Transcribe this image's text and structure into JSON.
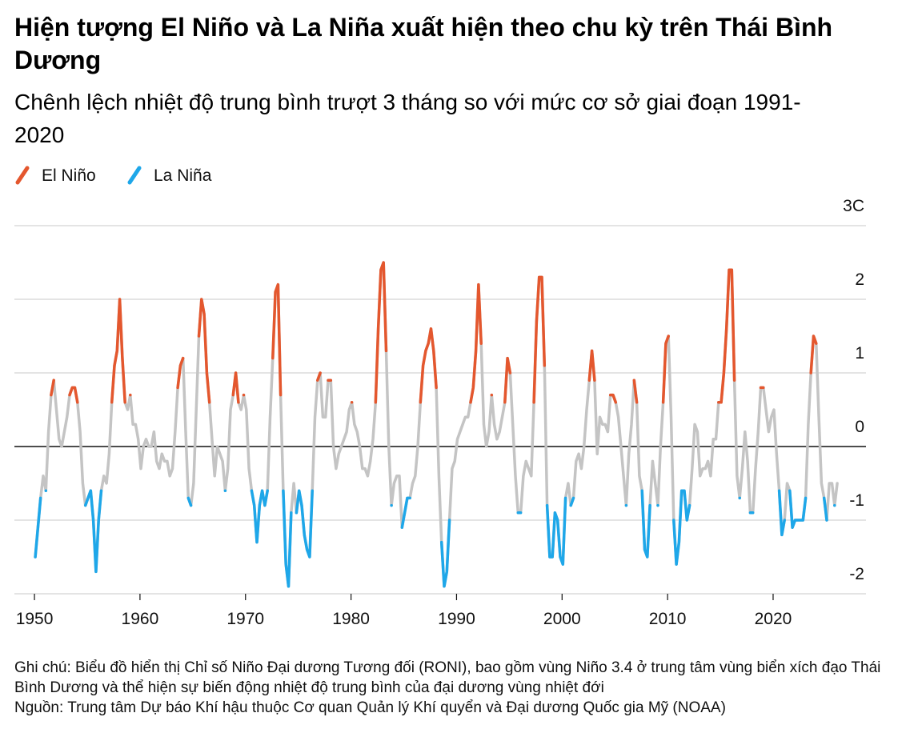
{
  "chart_data": {
    "type": "line",
    "title": "Hiện tượng El Niño và La Niña xuất hiện theo chu kỳ trên Thái Bình Dương",
    "subtitle": "Chênh lệch nhiệt độ trung bình trượt 3 tháng so với mức cơ sở giai đoạn 1991-2020",
    "note": "Ghi chú: Biểu đồ hiển thị Chỉ số Niño Đại dương Tương đối (RONI), bao gồm vùng Niño 3.4 ở trung tâm vùng biển xích đạo Thái Bình Dương và thể hiện sự biến động nhiệt độ trung bình của đại dương vùng nhiệt đới",
    "source": "Nguồn: Trung tâm Dự báo Khí hậu thuộc Cơ quan Quản lý Khí quyển và Đại dương Quốc gia Mỹ (NOAA)",
    "color": "#c4c4c4",
    "series": [
      {
        "name": "El Niño",
        "color": "#e4572e",
        "above": 0.5
      },
      {
        "name": "La Niña",
        "color": "#1ea7e9",
        "below": -0.5
      }
    ],
    "xlim": [
      1948.1,
      2028.8
    ],
    "xticks": [
      1950,
      1960,
      1970,
      1980,
      1990,
      2000,
      2010,
      2020
    ],
    "ylim": [
      -2,
      3
    ],
    "yticks": [
      -2,
      -1,
      0,
      1,
      2,
      {
        "value": 3,
        "label": "3C"
      }
    ],
    "grid": true,
    "x": [
      1950.08,
      1950.33,
      1950.58,
      1950.83,
      1951.08,
      1951.33,
      1951.58,
      1951.83,
      1952.08,
      1952.33,
      1952.58,
      1952.83,
      1953.08,
      1953.33,
      1953.58,
      1953.83,
      1954.08,
      1954.33,
      1954.58,
      1954.83,
      1955.08,
      1955.33,
      1955.58,
      1955.83,
      1956.08,
      1956.33,
      1956.58,
      1956.83,
      1957.08,
      1957.33,
      1957.58,
      1957.83,
      1958.08,
      1958.33,
      1958.58,
      1958.83,
      1959.08,
      1959.33,
      1959.58,
      1959.83,
      1960.08,
      1960.33,
      1960.58,
      1960.83,
      1961.08,
      1961.33,
      1961.58,
      1961.83,
      1962.08,
      1962.33,
      1962.58,
      1962.83,
      1963.08,
      1963.33,
      1963.58,
      1963.83,
      1964.08,
      1964.33,
      1964.58,
      1964.83,
      1965.08,
      1965.33,
      1965.58,
      1965.83,
      1966.08,
      1966.33,
      1966.58,
      1966.83,
      1967.08,
      1967.33,
      1967.58,
      1967.83,
      1968.08,
      1968.33,
      1968.58,
      1968.83,
      1969.08,
      1969.33,
      1969.58,
      1969.83,
      1970.08,
      1970.33,
      1970.58,
      1970.83,
      1971.08,
      1971.33,
      1971.58,
      1971.83,
      1972.08,
      1972.33,
      1972.58,
      1972.83,
      1973.08,
      1973.33,
      1973.58,
      1973.83,
      1974.08,
      1974.33,
      1974.58,
      1974.83,
      1975.08,
      1975.33,
      1975.58,
      1975.83,
      1976.08,
      1976.33,
      1976.58,
      1976.83,
      1977.08,
      1977.33,
      1977.58,
      1977.83,
      1978.08,
      1978.33,
      1978.58,
      1978.83,
      1979.08,
      1979.33,
      1979.58,
      1979.83,
      1980.08,
      1980.33,
      1980.58,
      1980.83,
      1981.08,
      1981.33,
      1981.58,
      1981.83,
      1982.08,
      1982.33,
      1982.58,
      1982.83,
      1983.08,
      1983.33,
      1983.58,
      1983.83,
      1984.08,
      1984.33,
      1984.58,
      1984.83,
      1985.08,
      1985.33,
      1985.58,
      1985.83,
      1986.08,
      1986.33,
      1986.58,
      1986.83,
      1987.08,
      1987.33,
      1987.58,
      1987.83,
      1988.08,
      1988.33,
      1988.58,
      1988.83,
      1989.08,
      1989.33,
      1989.58,
      1989.83,
      1990.08,
      1990.33,
      1990.58,
      1990.83,
      1991.08,
      1991.33,
      1991.58,
      1991.83,
      1992.08,
      1992.33,
      1992.58,
      1992.83,
      1993.08,
      1993.33,
      1993.58,
      1993.83,
      1994.08,
      1994.33,
      1994.58,
      1994.83,
      1995.08,
      1995.33,
      1995.58,
      1995.83,
      1996.08,
      1996.33,
      1996.58,
      1996.83,
      1997.08,
      1997.33,
      1997.58,
      1997.83,
      1998.08,
      1998.33,
      1998.58,
      1998.83,
      1999.08,
      1999.33,
      1999.58,
      1999.83,
      2000.08,
      2000.33,
      2000.58,
      2000.83,
      2001.08,
      2001.33,
      2001.58,
      2001.83,
      2002.08,
      2002.33,
      2002.58,
      2002.83,
      2003.08,
      2003.33,
      2003.58,
      2003.83,
      2004.08,
      2004.33,
      2004.58,
      2004.83,
      2005.08,
      2005.33,
      2005.58,
      2005.83,
      2006.08,
      2006.33,
      2006.58,
      2006.83,
      2007.08,
      2007.33,
      2007.58,
      2007.83,
      2008.08,
      2008.33,
      2008.58,
      2008.83,
      2009.08,
      2009.33,
      2009.58,
      2009.83,
      2010.08,
      2010.33,
      2010.58,
      2010.83,
      2011.08,
      2011.33,
      2011.58,
      2011.83,
      2012.08,
      2012.33,
      2012.58,
      2012.83,
      2013.08,
      2013.33,
      2013.58,
      2013.83,
      2014.08,
      2014.33,
      2014.58,
      2014.83,
      2015.08,
      2015.33,
      2015.58,
      2015.83,
      2016.08,
      2016.33,
      2016.58,
      2016.83,
      2017.08,
      2017.33,
      2017.58,
      2017.83,
      2018.08,
      2018.33,
      2018.58,
      2018.83,
      2019.08,
      2019.33,
      2019.58,
      2019.83,
      2020.08,
      2020.33,
      2020.58,
      2020.83,
      2021.08,
      2021.33,
      2021.58,
      2021.83,
      2022.08,
      2022.33,
      2022.58,
      2022.83,
      2023.08,
      2023.33,
      2023.58,
      2023.83,
      2024.08,
      2024.33,
      2024.58,
      2024.83,
      2025.08,
      2025.33,
      2025.58,
      2025.83,
      2026.08
    ],
    "values": [
      -1.5,
      -1.1,
      -0.7,
      -0.4,
      -0.6,
      0.2,
      0.7,
      0.9,
      0.5,
      0.1,
      0.0,
      0.2,
      0.4,
      0.7,
      0.8,
      0.8,
      0.6,
      0.2,
      -0.5,
      -0.8,
      -0.7,
      -0.6,
      -1.0,
      -1.7,
      -1.0,
      -0.6,
      -0.4,
      -0.5,
      -0.1,
      0.6,
      1.1,
      1.3,
      2.0,
      1.2,
      0.6,
      0.5,
      0.7,
      0.3,
      0.3,
      0.1,
      -0.3,
      0.0,
      0.1,
      0.0,
      0.0,
      0.2,
      -0.2,
      -0.3,
      -0.1,
      -0.2,
      -0.2,
      -0.4,
      -0.3,
      0.2,
      0.8,
      1.1,
      1.2,
      0.2,
      -0.7,
      -0.8,
      -0.5,
      0.5,
      1.5,
      2.0,
      1.8,
      1.0,
      0.6,
      0.1,
      -0.4,
      0.0,
      -0.1,
      -0.2,
      -0.6,
      -0.3,
      0.5,
      0.7,
      1.0,
      0.6,
      0.5,
      0.7,
      0.5,
      -0.3,
      -0.6,
      -0.8,
      -1.3,
      -0.8,
      -0.6,
      -0.8,
      -0.6,
      0.4,
      1.2,
      2.1,
      2.2,
      0.7,
      -0.6,
      -1.6,
      -1.9,
      -0.9,
      -0.5,
      -0.9,
      -0.6,
      -0.8,
      -1.2,
      -1.4,
      -1.5,
      -0.6,
      0.4,
      0.9,
      1.0,
      0.4,
      0.4,
      0.9,
      0.9,
      0.0,
      -0.3,
      -0.1,
      0.0,
      0.1,
      0.2,
      0.5,
      0.6,
      0.3,
      0.2,
      0.0,
      -0.3,
      -0.3,
      -0.4,
      -0.2,
      0.1,
      0.6,
      1.6,
      2.4,
      2.5,
      1.3,
      0.0,
      -0.8,
      -0.5,
      -0.4,
      -0.4,
      -1.1,
      -0.9,
      -0.7,
      -0.7,
      -0.5,
      -0.4,
      0.0,
      0.6,
      1.1,
      1.3,
      1.4,
      1.6,
      1.3,
      0.8,
      -0.4,
      -1.3,
      -1.9,
      -1.7,
      -1.0,
      -0.3,
      -0.2,
      0.1,
      0.2,
      0.3,
      0.4,
      0.4,
      0.6,
      0.8,
      1.3,
      2.2,
      1.4,
      0.3,
      0.0,
      0.2,
      0.7,
      0.3,
      0.1,
      0.2,
      0.4,
      0.6,
      1.2,
      1.0,
      0.3,
      -0.4,
      -0.9,
      -0.9,
      -0.4,
      -0.2,
      -0.3,
      -0.4,
      0.6,
      1.7,
      2.3,
      2.3,
      1.1,
      -0.8,
      -1.5,
      -1.5,
      -0.9,
      -1.0,
      -1.5,
      -1.6,
      -0.7,
      -0.5,
      -0.8,
      -0.7,
      -0.2,
      -0.1,
      -0.3,
      0.0,
      0.5,
      0.9,
      1.3,
      0.9,
      -0.1,
      0.4,
      0.3,
      0.3,
      0.2,
      0.7,
      0.7,
      0.6,
      0.4,
      0.0,
      -0.4,
      -0.8,
      -0.1,
      0.3,
      0.9,
      0.6,
      -0.4,
      -0.6,
      -1.4,
      -1.5,
      -0.8,
      -0.2,
      -0.5,
      -0.8,
      0.0,
      0.6,
      1.4,
      1.5,
      0.4,
      -1.0,
      -1.6,
      -1.3,
      -0.6,
      -0.6,
      -1.0,
      -0.8,
      -0.3,
      0.3,
      0.2,
      -0.4,
      -0.3,
      -0.3,
      -0.2,
      -0.4,
      0.1,
      0.1,
      0.6,
      0.6,
      1.0,
      1.6,
      2.4,
      2.4,
      0.9,
      -0.4,
      -0.7,
      -0.3,
      0.2,
      -0.2,
      -0.9,
      -0.9,
      -0.3,
      0.2,
      0.8,
      0.8,
      0.5,
      0.2,
      0.4,
      0.5,
      -0.1,
      -0.6,
      -1.2,
      -1.0,
      -0.5,
      -0.6,
      -1.1,
      -1.0,
      -1.0,
      -1.0,
      -1.0,
      -0.7,
      0.3,
      1.0,
      1.5,
      1.4,
      0.4,
      -0.5,
      -0.7,
      -1.0,
      -0.5,
      -0.5,
      -0.8,
      -0.5
    ]
  }
}
